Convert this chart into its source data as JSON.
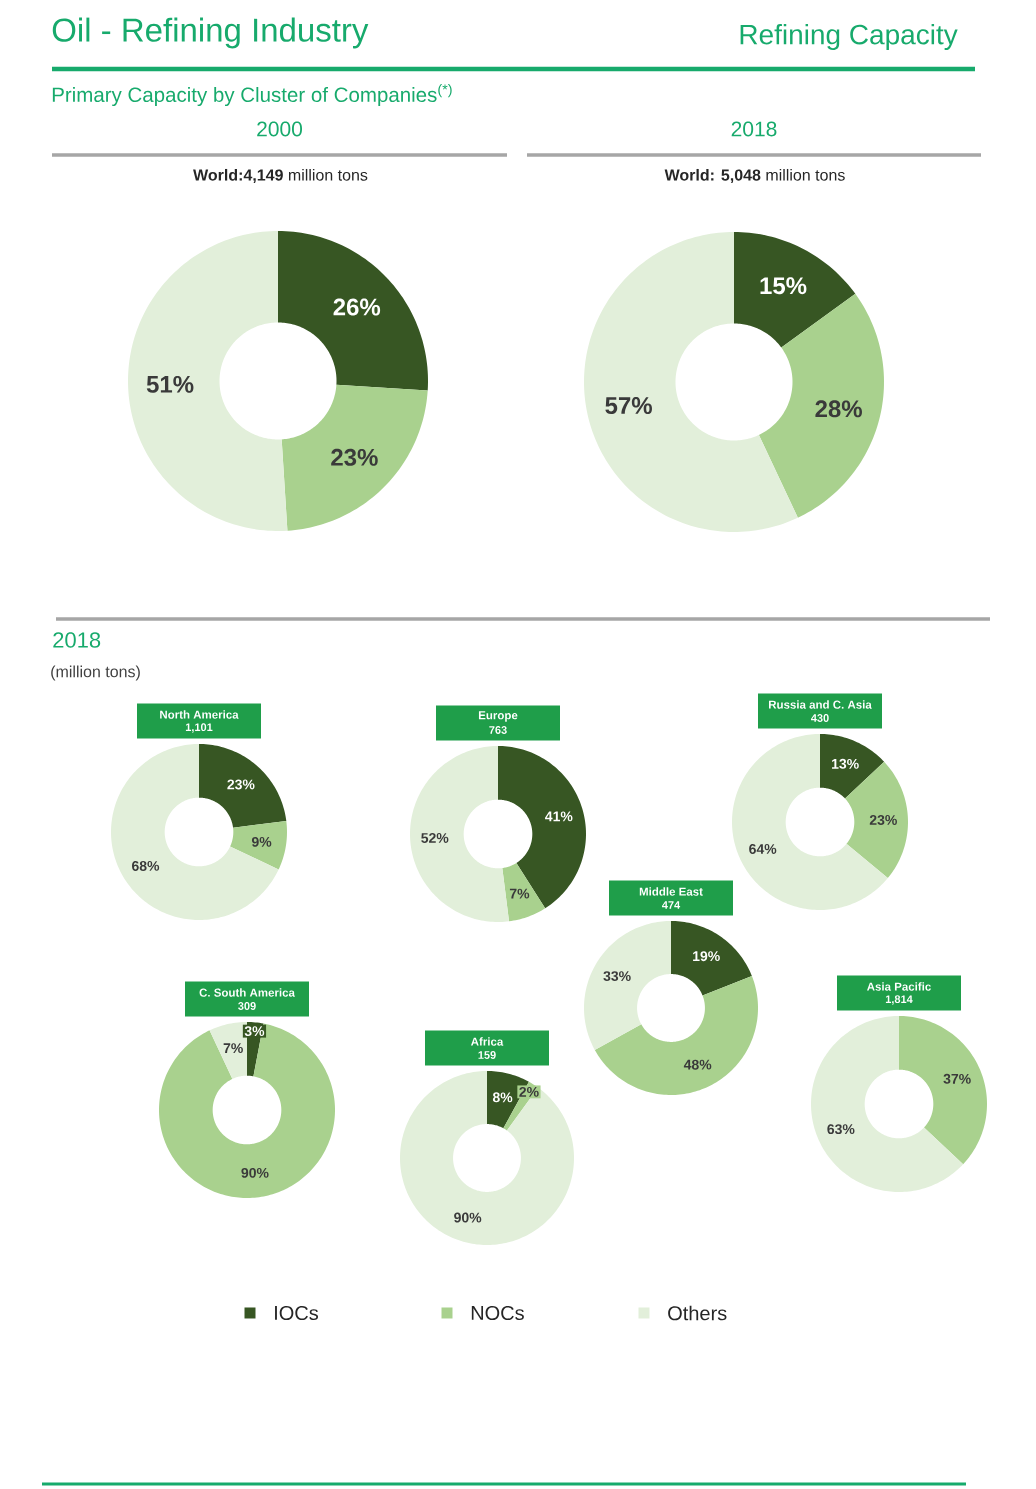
{
  "chart_data": [
    {
      "type": "donut",
      "title": "2000",
      "subtitle": "**World:4,149** million tons",
      "categories": [
        null,
        null,
        null
      ],
      "values": [
        26,
        23,
        51
      ],
      "colors": [
        "#375623",
        "#a9d18e",
        "#e2efda"
      ],
      "value_labels": [
        "26%",
        "23%",
        "51%"
      ],
      "annotations": [
        "Oil - Refining Industry",
        "Refining Capacity",
        "Primary Capacity by Cluster of Companies$^{(*)}$"
      ]
    },
    {
      "type": "donut",
      "title": "2018",
      "subtitle": "**World: 5,048** million tons",
      "categories": [
        null,
        null,
        null
      ],
      "values": [
        15,
        28,
        57
      ],
      "colors": [
        "#375623",
        "#a9d18e",
        "#e2efda"
      ],
      "value_labels": [
        "15%",
        "28%",
        "57%"
      ]
    },
    {
      "type": "donut",
      "title": "North America",
      "subtitle": "1,101",
      "categories": [
        null,
        null,
        null
      ],
      "values": [
        23,
        9,
        68
      ],
      "colors": [
        "#375623",
        "#a9d18e",
        "#e2efda"
      ],
      "value_labels": [
        "23%",
        "9%",
        "68%"
      ],
      "annotations": [
        "2018",
        "(million tons)"
      ]
    },
    {
      "type": "donut",
      "title": "Europe",
      "subtitle": "763",
      "categories": [
        null,
        null,
        null
      ],
      "values": [
        41,
        7,
        52
      ],
      "colors": [
        "#375623",
        "#a9d18e",
        "#e2efda"
      ],
      "value_labels": [
        "41%",
        "7%",
        "52%"
      ]
    },
    {
      "type": "donut",
      "title": "Russia and C. Asia",
      "subtitle": "430",
      "categories": [
        null,
        null,
        null
      ],
      "values": [
        13,
        23,
        64
      ],
      "colors": [
        "#375623",
        "#a9d18e",
        "#e2efda"
      ],
      "value_labels": [
        "13%",
        "23%",
        "64%"
      ]
    },
    {
      "type": "donut",
      "title": "Middle East",
      "subtitle": "474",
      "categories": [
        null,
        null,
        null
      ],
      "values": [
        19,
        48,
        33
      ],
      "colors": [
        "#375623",
        "#a9d18e",
        "#e2efda"
      ],
      "value_labels": [
        "19%",
        "48%",
        "33%"
      ]
    },
    {
      "type": "donut",
      "title": "C. South America",
      "subtitle": "309",
      "categories": [
        null,
        null,
        null
      ],
      "values": [
        3,
        90,
        7
      ],
      "colors": [
        "#375623",
        "#a9d18e",
        "#e2efda"
      ],
      "value_labels": [
        "3%",
        "90%",
        "7%"
      ]
    },
    {
      "type": "donut",
      "title": "Africa",
      "subtitle": "159",
      "categories": [
        "IOCs",
        "NOCs",
        "Others"
      ],
      "values": [
        8,
        2,
        90
      ],
      "colors": [
        "#375623",
        "#a9d18e",
        "#e2efda"
      ],
      "value_labels": [
        "8%",
        "2%",
        "90%"
      ],
      "legend": "bottom"
    },
    {
      "type": "donut",
      "title": "Asia Pacific",
      "subtitle": "1,814",
      "categories": [
        null,
        null
      ],
      "values": [
        37,
        63
      ],
      "colors": [
        "#a9d18e",
        "#e2efda"
      ],
      "value_labels": [
        "37%",
        "63%"
      ]
    }
  ]
}
